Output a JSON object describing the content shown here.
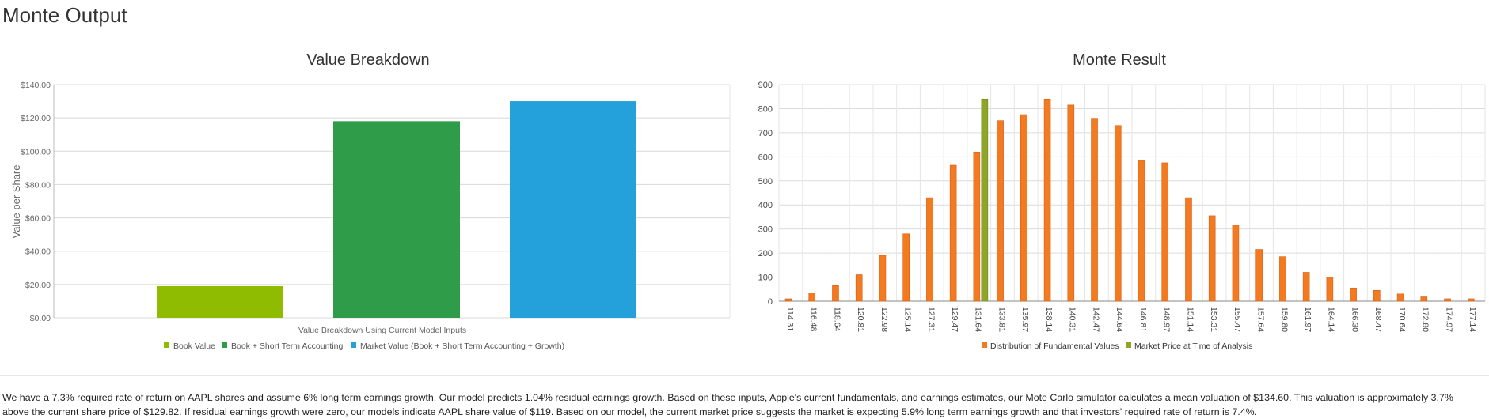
{
  "page": {
    "title": "Monte Output",
    "footer": "We have a 7.3% required rate of return on AAPL shares and assume 6% long term earnings growth.  Our model predicts 1.04% residual earnings growth.  Based on these inputs, Apple's current fundamentals, and earnings estimates, our Mote Carlo simulator calculates a mean valuation of $134.60.  This valuation is approximately 3.7% above the current share price of $129.82.  If residual earnings growth were zero, our models indicate AAPL share value of $119.  Based on our model, the current market price suggests the market is expecting 5.9% long term earnings growth and that investors' required rate of return is 7.4%."
  },
  "chart_data": [
    {
      "type": "bar",
      "title": "Value Breakdown",
      "xlabel": "Value Breakdown Using Current Model Inputs",
      "ylabel": "Value per Share",
      "ylim": [
        0,
        140
      ],
      "yticks": [
        "$0.00",
        "$20.00",
        "$40.00",
        "$60.00",
        "$80.00",
        "$100.00",
        "$120.00",
        "$140.00"
      ],
      "grid": "horizontal",
      "legend": "bottom",
      "series": [
        {
          "name": "Book Value",
          "value": 19,
          "color": "#8fbc00"
        },
        {
          "name": "Book + Short Term Accounting",
          "value": 118,
          "color": "#2e9c49"
        },
        {
          "name": "Market Value (Book + Short Term Accounting + Growth)",
          "value": 130,
          "color": "#24a0da"
        }
      ]
    },
    {
      "type": "bar",
      "title": "Monte Result",
      "ylim": [
        0,
        900
      ],
      "yticks": [
        "0",
        "100",
        "200",
        "300",
        "400",
        "500",
        "600",
        "700",
        "800",
        "900"
      ],
      "grid": "both",
      "legend": "bottom",
      "categories": [
        "114.31",
        "116.48",
        "118.64",
        "120.81",
        "122.98",
        "125.14",
        "127.31",
        "129.47",
        "131.64",
        "133.81",
        "135.97",
        "138.14",
        "140.31",
        "142.47",
        "144.64",
        "146.81",
        "148.97",
        "151.14",
        "153.31",
        "155.47",
        "157.64",
        "159.80",
        "161.97",
        "164.14",
        "166.30",
        "168.47",
        "170.64",
        "172.80",
        "174.97",
        "177.14"
      ],
      "series": [
        {
          "name": "Distribution of Fundamental Values",
          "color": "#f47a20",
          "values": [
            10,
            35,
            65,
            110,
            190,
            280,
            430,
            565,
            620,
            750,
            775,
            840,
            815,
            760,
            730,
            585,
            575,
            430,
            355,
            315,
            215,
            185,
            120,
            100,
            55,
            45,
            30,
            18,
            10,
            10
          ]
        },
        {
          "name": "Market Price at Time of Analysis",
          "color": "#8fa526",
          "values": [
            0,
            0,
            0,
            0,
            0,
            0,
            0,
            0,
            840,
            0,
            0,
            0,
            0,
            0,
            0,
            0,
            0,
            0,
            0,
            0,
            0,
            0,
            0,
            0,
            0,
            0,
            0,
            0,
            0,
            0
          ]
        }
      ]
    }
  ]
}
